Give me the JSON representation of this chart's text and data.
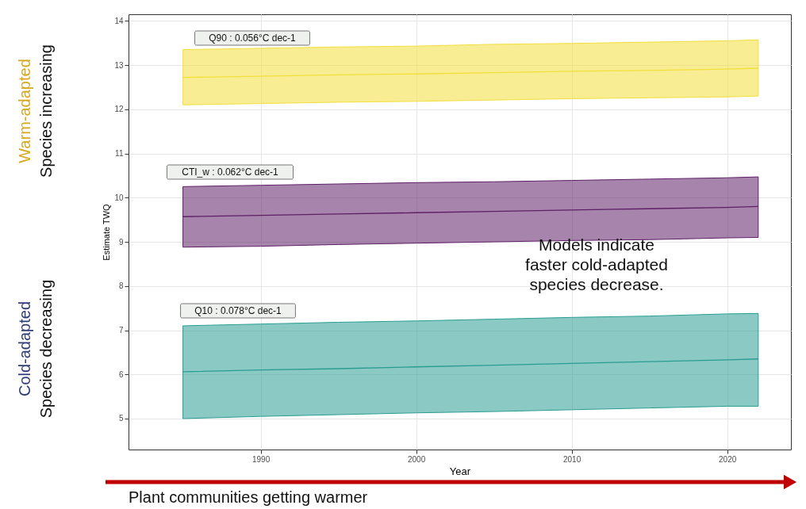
{
  "chart_data": {
    "type": "line",
    "xlabel": "Year",
    "ylabel": "Estimate TWQ",
    "xlim": [
      1981.5,
      2024.1
    ],
    "xticks": [
      1990,
      2000,
      2010,
      2020
    ],
    "ylim": [
      4.3,
      14.15
    ],
    "yticks": [
      5,
      6,
      7,
      8,
      9,
      10,
      11,
      12,
      13,
      14
    ],
    "grid": true,
    "x": [
      1985,
      1990,
      1995,
      2000,
      2005,
      2010,
      2015,
      2020,
      2022
    ],
    "series": [
      {
        "color": "#f2df3a",
        "values": [
          12.72,
          12.75,
          12.78,
          12.8,
          12.83,
          12.86,
          12.88,
          12.91,
          12.93
        ],
        "lower": [
          12.1,
          12.13,
          12.16,
          12.18,
          12.21,
          12.24,
          12.26,
          12.28,
          12.3
        ],
        "upper": [
          13.35,
          13.38,
          13.41,
          13.43,
          13.47,
          13.49,
          13.52,
          13.55,
          13.57
        ]
      },
      {
        "color": "#5e1f66",
        "values": [
          9.57,
          9.6,
          9.63,
          9.66,
          9.69,
          9.72,
          9.75,
          9.78,
          9.8
        ],
        "lower": [
          8.88,
          8.9,
          8.94,
          8.97,
          9.0,
          9.03,
          9.05,
          9.09,
          9.1
        ],
        "upper": [
          10.25,
          10.28,
          10.31,
          10.34,
          10.36,
          10.39,
          10.42,
          10.45,
          10.47
        ]
      },
      {
        "color": "#2a9d93",
        "values": [
          6.06,
          6.1,
          6.13,
          6.17,
          6.21,
          6.25,
          6.29,
          6.33,
          6.35
        ],
        "lower": [
          5.0,
          5.05,
          5.09,
          5.13,
          5.16,
          5.2,
          5.24,
          5.28,
          5.28
        ],
        "upper": [
          7.1,
          7.14,
          7.18,
          7.21,
          7.25,
          7.29,
          7.32,
          7.37,
          7.38
        ]
      }
    ],
    "annotations": [
      "Q90 : 0.056°C dec-1",
      "CTI_w : 0.062°C dec-1",
      "Q10 : 0.078°C dec-1",
      "Warm-adapted",
      "Species increasing",
      "Cold-adapted",
      "Species decreasing",
      "Models indicate\nfaster cold-adapted\nspecies decrease.",
      "Plant communities getting warmer"
    ]
  }
}
